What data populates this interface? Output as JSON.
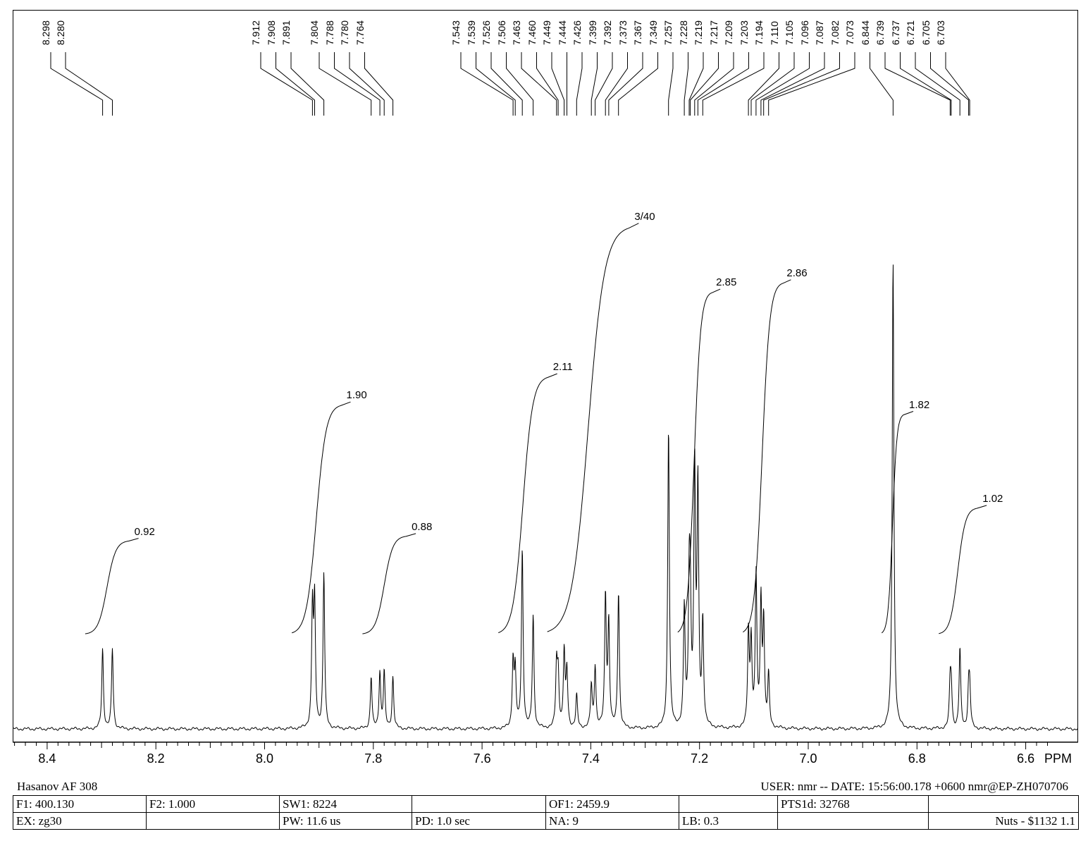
{
  "chart_data": {
    "type": "line",
    "xlabel": "PPM",
    "xlim": [
      8.52,
      6.54
    ],
    "x_reversed": true,
    "x_ticks": [
      "8.4",
      "8.2",
      "8.0",
      "7.8",
      "7.6",
      "7.4",
      "7.2",
      "7.0",
      "6.8",
      "6.6"
    ],
    "grid": false,
    "peak_labels": [
      "8.298",
      "8.280",
      "7.912",
      "7.908",
      "7.891",
      "7.804",
      "7.788",
      "7.780",
      "7.764",
      "7.543",
      "7.539",
      "7.526",
      "7.506",
      "7.463",
      "7.460",
      "7.449",
      "7.444",
      "7.426",
      "7.399",
      "7.392",
      "7.373",
      "7.367",
      "7.349",
      "7.257",
      "7.228",
      "7.219",
      "7.217",
      "7.209",
      "7.203",
      "7.194",
      "7.110",
      "7.105",
      "7.096",
      "7.087",
      "7.082",
      "7.073",
      "6.844",
      "6.739",
      "6.737",
      "6.721",
      "6.705",
      "6.703"
    ],
    "peaks": [
      {
        "ppm": 8.298,
        "height": 0.17
      },
      {
        "ppm": 8.28,
        "height": 0.17
      },
      {
        "ppm": 7.912,
        "height": 0.25
      },
      {
        "ppm": 7.908,
        "height": 0.26
      },
      {
        "ppm": 7.891,
        "height": 0.33
      },
      {
        "ppm": 7.804,
        "height": 0.11
      },
      {
        "ppm": 7.788,
        "height": 0.12
      },
      {
        "ppm": 7.78,
        "height": 0.12
      },
      {
        "ppm": 7.764,
        "height": 0.11
      },
      {
        "ppm": 7.543,
        "height": 0.14
      },
      {
        "ppm": 7.539,
        "height": 0.12
      },
      {
        "ppm": 7.526,
        "height": 0.38
      },
      {
        "ppm": 7.506,
        "height": 0.24
      },
      {
        "ppm": 7.463,
        "height": 0.13
      },
      {
        "ppm": 7.46,
        "height": 0.11
      },
      {
        "ppm": 7.449,
        "height": 0.16
      },
      {
        "ppm": 7.444,
        "height": 0.12
      },
      {
        "ppm": 7.426,
        "height": 0.07
      },
      {
        "ppm": 7.399,
        "height": 0.09
      },
      {
        "ppm": 7.392,
        "height": 0.13
      },
      {
        "ppm": 7.373,
        "height": 0.28
      },
      {
        "ppm": 7.367,
        "height": 0.22
      },
      {
        "ppm": 7.349,
        "height": 0.29
      },
      {
        "ppm": 7.257,
        "height": 0.64
      },
      {
        "ppm": 7.228,
        "height": 0.25
      },
      {
        "ppm": 7.219,
        "height": 0.27
      },
      {
        "ppm": 7.217,
        "height": 0.22
      },
      {
        "ppm": 7.209,
        "height": 0.54
      },
      {
        "ppm": 7.203,
        "height": 0.5
      },
      {
        "ppm": 7.194,
        "height": 0.22
      },
      {
        "ppm": 7.11,
        "height": 0.2
      },
      {
        "ppm": 7.105,
        "height": 0.18
      },
      {
        "ppm": 7.096,
        "height": 0.32
      },
      {
        "ppm": 7.087,
        "height": 0.26
      },
      {
        "ppm": 7.082,
        "height": 0.22
      },
      {
        "ppm": 7.073,
        "height": 0.11
      },
      {
        "ppm": 6.844,
        "height": 1.0
      },
      {
        "ppm": 6.739,
        "height": 0.09
      },
      {
        "ppm": 6.737,
        "height": 0.08
      },
      {
        "ppm": 6.721,
        "height": 0.17
      },
      {
        "ppm": 6.705,
        "height": 0.08
      },
      {
        "ppm": 6.703,
        "height": 0.08
      }
    ],
    "integrals": [
      {
        "label": "0.92",
        "from": 8.33,
        "to": 8.25,
        "rise": 0.2
      },
      {
        "label": "1.90",
        "from": 7.95,
        "to": 7.86,
        "rise": 0.49
      },
      {
        "label": "0.88",
        "from": 7.82,
        "to": 7.74,
        "rise": 0.21
      },
      {
        "label": "2.11",
        "from": 7.57,
        "to": 7.48,
        "rise": 0.55
      },
      {
        "label": "3/40",
        "from": 7.48,
        "to": 7.33,
        "rise": 0.87
      },
      {
        "label": "2.85",
        "from": 7.24,
        "to": 7.18,
        "rise": 0.73
      },
      {
        "label": "2.86",
        "from": 7.12,
        "to": 7.05,
        "rise": 0.75
      },
      {
        "label": "1.82",
        "from": 6.865,
        "to": 6.825,
        "rise": 0.47
      },
      {
        "label": "1.02",
        "from": 6.76,
        "to": 6.69,
        "rise": 0.27
      }
    ]
  },
  "footer": {
    "sample_name": "Hasanov AF 308",
    "user_line": "USER: nmr -- DATE: 15:56:00.178 +0600  nmr@EP-ZH070706",
    "row1": [
      "F1: 400.130",
      "F2: 1.000",
      "SW1: 8224",
      "",
      "OF1: 2459.9",
      "",
      "PTS1d: 32768",
      ""
    ],
    "row2": [
      "EX: zg30",
      "",
      "PW: 11.6 us",
      "PD: 1.0   sec",
      "NA: 9",
      "LB: 0.3",
      "",
      "Nuts - $1132  1.1"
    ]
  }
}
